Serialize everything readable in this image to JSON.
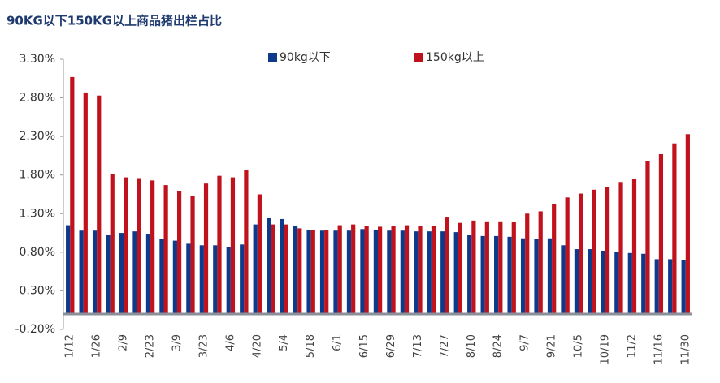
{
  "chart_data": {
    "type": "bar",
    "title": "90KG以下150KG以上商品猪出栏占比",
    "categories": [
      "1/12",
      null,
      "1/26",
      null,
      "2/9",
      null,
      "2/23",
      null,
      "3/9",
      null,
      "3/23",
      null,
      "4/6",
      null,
      "4/20",
      null,
      "5/4",
      null,
      "5/18",
      null,
      "6/1",
      null,
      "6/15",
      null,
      "6/29",
      null,
      "7/13",
      null,
      "7/27",
      null,
      "8/10",
      null,
      "8/24",
      null,
      "9/7",
      null,
      "9/21",
      null,
      "10/5",
      null,
      "10/19",
      null,
      "11/2",
      null,
      "11/16",
      null,
      "11/30"
    ],
    "series": [
      {
        "name": "90kg以下",
        "color": "#0e3a8c",
        "values": [
          1.15,
          1.08,
          1.08,
          1.03,
          1.05,
          1.07,
          1.04,
          0.97,
          0.95,
          0.91,
          0.89,
          0.89,
          0.87,
          0.9,
          1.16,
          1.24,
          1.23,
          1.14,
          1.09,
          1.08,
          1.08,
          1.08,
          1.1,
          1.09,
          1.08,
          1.08,
          1.07,
          1.07,
          1.07,
          1.06,
          1.03,
          1.01,
          1.01,
          1.0,
          0.98,
          0.97,
          0.98,
          0.89,
          0.84,
          0.84,
          0.82,
          0.8,
          0.79,
          0.78,
          0.71,
          0.71,
          0.7
        ]
      },
      {
        "name": "150kg以上",
        "color": "#c0121c",
        "values": [
          3.07,
          2.87,
          2.83,
          1.81,
          1.77,
          1.76,
          1.73,
          1.67,
          1.59,
          1.53,
          1.69,
          1.79,
          1.77,
          1.86,
          1.55,
          1.16,
          1.16,
          1.11,
          1.09,
          1.09,
          1.15,
          1.16,
          1.14,
          1.13,
          1.14,
          1.15,
          1.14,
          1.14,
          1.25,
          1.18,
          1.21,
          1.2,
          1.2,
          1.19,
          1.3,
          1.33,
          1.42,
          1.51,
          1.56,
          1.61,
          1.64,
          1.71,
          1.75,
          1.98,
          2.07,
          2.21,
          2.33
        ]
      }
    ],
    "ylim": [
      -0.2,
      3.3
    ],
    "yticks": [
      {
        "value": -0.2,
        "label": "-0.20%"
      },
      {
        "value": 0.3,
        "label": "0.30%"
      },
      {
        "value": 0.8,
        "label": "0.80%"
      },
      {
        "value": 1.3,
        "label": "1.30%"
      },
      {
        "value": 1.8,
        "label": "1.80%"
      },
      {
        "value": 2.3,
        "label": "2.30%"
      },
      {
        "value": 2.8,
        "label": "2.80%"
      },
      {
        "value": 3.3,
        "label": "3.30%"
      }
    ],
    "grid": false,
    "legend": "top"
  }
}
